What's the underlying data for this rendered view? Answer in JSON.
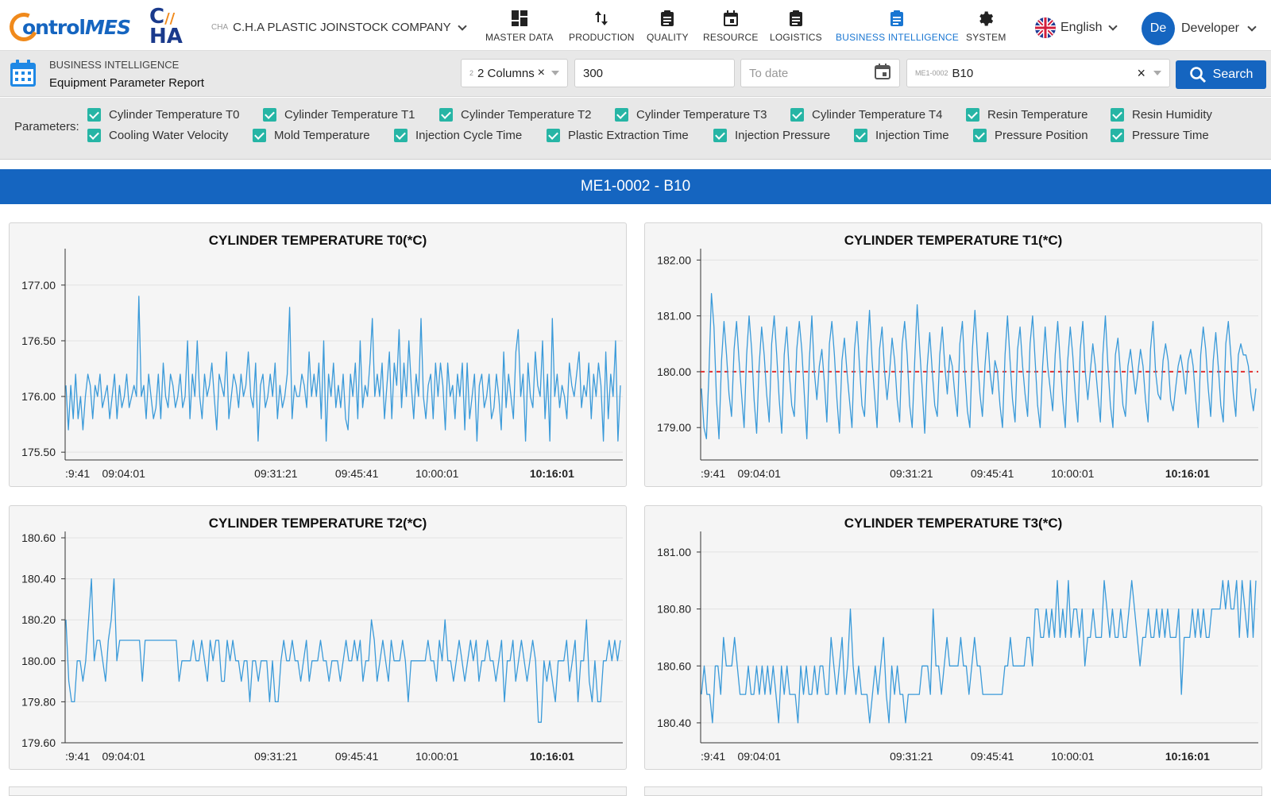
{
  "brand": {
    "logo_text_a": "ontrol",
    "logo_text_b": "MES",
    "partner_line1": "C",
    "partner_line2": "HA"
  },
  "company": {
    "code": "CHA",
    "name": "C.H.A PLASTIC JOINSTOCK COMPANY"
  },
  "nav": [
    {
      "label": "MASTER DATA",
      "icon": "dashboard-icon",
      "active": false
    },
    {
      "label": "PRODUCTION",
      "icon": "sort-arrows-icon",
      "active": false
    },
    {
      "label": "QUALITY",
      "icon": "clipboard-icon",
      "active": false
    },
    {
      "label": "RESOURCE",
      "icon": "calendar-icon",
      "active": false
    },
    {
      "label": "LOGISTICS",
      "icon": "clipboard-list-icon",
      "active": false
    },
    {
      "label": "BUSINESS INTELLIGENCE",
      "icon": "report-icon",
      "active": true
    },
    {
      "label": "SYSTEM",
      "icon": "gear-icon",
      "active": false
    }
  ],
  "language": {
    "label": "English",
    "flag": "uk-flag-icon"
  },
  "user": {
    "initials": "De",
    "name": "Developer"
  },
  "breadcrumb": {
    "section": "BUSINESS INTELLIGENCE",
    "page": "Equipment Parameter Report"
  },
  "filters": {
    "columns": {
      "code": "2",
      "value": "2 Columns"
    },
    "limit": {
      "value": "300"
    },
    "to_date": {
      "placeholder": "To date",
      "value": ""
    },
    "equipment": {
      "code": "ME1-0002",
      "value": "B10"
    },
    "search_label": "Search"
  },
  "parameters": {
    "label": "Parameters:",
    "row1": [
      "Cylinder Temperature T0",
      "Cylinder Temperature T1",
      "Cylinder Temperature T2",
      "Cylinder Temperature T3",
      "Cylinder Temperature T4",
      "Resin Temperature",
      "Resin Humidity"
    ],
    "row2": [
      "Cooling Water Velocity",
      "Mold Temperature",
      "Injection Cycle Time",
      "Plastic Extraction Time",
      "Injection Pressure",
      "Injection Time",
      "Pressure Position",
      "Pressure Time"
    ]
  },
  "banner": "ME1-0002 - B10",
  "colors": {
    "primary": "#1565c0",
    "line": "#3a9ad9",
    "limit": "#e03030",
    "check": "#26b5a5"
  },
  "chart_data": [
    {
      "type": "line",
      "title": "CYLINDER TEMPERATURE T0(*C)",
      "x_ticks": [
        ":9:41",
        "09:04:01",
        "09:31:21",
        "09:45:41",
        "10:00:01",
        "10:16:01"
      ],
      "y_ticks": [
        "177.00",
        "176.50",
        "176.00",
        "175.50"
      ],
      "ylim": [
        175.43,
        177.27
      ],
      "values": [
        176.1,
        175.7,
        176.1,
        175.8,
        176.2,
        175.8,
        176.0,
        175.7,
        176.0,
        176.2,
        176.1,
        175.8,
        176.1,
        176.0,
        176.2,
        175.9,
        176.0,
        176.1,
        175.8,
        176.0,
        176.2,
        175.8,
        176.1,
        175.9,
        176.0,
        176.2,
        175.9,
        176.0,
        176.1,
        176.0,
        176.9,
        176.0,
        176.1,
        175.8,
        176.2,
        176.0,
        175.8,
        175.9,
        176.2,
        175.8,
        176.3,
        176.0,
        175.9,
        176.2,
        176.1,
        175.9,
        176.0,
        176.2,
        175.9,
        176.0,
        176.5,
        175.8,
        176.2,
        176.0,
        176.5,
        176.0,
        175.8,
        176.2,
        176.0,
        176.1,
        176.3,
        176.0,
        175.7,
        176.2,
        176.1,
        176.0,
        176.4,
        175.8,
        176.0,
        176.2,
        176.1,
        175.9,
        176.2,
        176.0,
        176.1,
        176.4,
        176.0,
        175.9,
        176.3,
        175.6,
        176.1,
        176.2,
        175.9,
        176.0,
        176.2,
        176.0,
        176.3,
        175.8,
        176.1,
        175.9,
        176.0,
        176.2,
        176.8,
        175.8,
        176.1,
        176.0,
        176.0,
        176.2,
        176.1,
        175.9,
        176.4,
        176.0,
        176.2,
        176.0,
        176.3,
        175.8,
        176.5,
        175.6,
        176.2,
        176.0,
        176.3,
        175.9,
        176.1,
        175.9,
        176.2,
        175.8,
        175.7,
        176.2,
        176.0,
        176.3,
        175.8,
        176.5,
        175.9,
        176.1,
        176.0,
        176.3,
        176.7,
        176.0,
        176.2,
        176.0,
        176.3,
        175.8,
        176.1,
        176.4,
        175.8,
        176.3,
        176.1,
        176.6,
        175.9,
        176.3,
        176.0,
        176.5,
        176.1,
        175.8,
        176.2,
        176.0,
        176.7,
        176.0,
        175.8,
        176.1,
        176.2,
        175.8,
        176.3,
        176.0,
        176.3,
        176.1,
        175.7,
        176.3,
        176.0,
        176.1,
        175.8,
        176.2,
        176.0,
        176.3,
        175.7,
        176.3,
        175.8,
        176.0,
        176.2,
        175.6,
        176.1,
        176.2,
        175.9,
        176.0,
        176.2,
        175.8,
        175.9,
        176.2,
        176.0,
        175.7,
        176.4,
        175.9,
        176.2,
        176.0,
        175.8,
        176.4,
        176.6,
        176.0,
        176.2,
        175.6,
        176.3,
        176.0,
        175.9,
        176.4,
        176.1,
        176.0,
        176.5,
        175.8,
        176.2,
        175.6,
        176.7,
        176.0,
        176.2,
        175.9,
        176.1,
        176.0,
        175.8,
        176.3,
        176.1,
        176.0,
        176.2,
        176.4,
        175.9,
        176.1,
        176.0,
        176.3,
        175.8,
        176.2,
        176.0,
        176.3,
        176.1,
        175.6,
        176.4,
        175.8,
        176.2,
        176.0,
        176.5,
        175.6,
        176.1
      ]
    },
    {
      "type": "line",
      "title": "CYLINDER TEMPERATURE T1(*C)",
      "x_ticks": [
        ":9:41",
        "09:04:01",
        "09:31:21",
        "09:45:41",
        "10:00:01",
        "10:16:01"
      ],
      "y_ticks": [
        "182.00",
        "181.00",
        "180.00",
        "179.00"
      ],
      "ylim": [
        178.42,
        182.09
      ],
      "limit_line": 180.0,
      "values": [
        179.7,
        179.0,
        178.8,
        180.0,
        181.4,
        180.8,
        179.5,
        178.8,
        180.2,
        180.9,
        180.3,
        179.6,
        179.2,
        180.4,
        180.9,
        180.2,
        179.6,
        179.0,
        180.3,
        181.0,
        180.4,
        179.5,
        178.9,
        180.1,
        180.8,
        180.3,
        179.6,
        179.1,
        180.5,
        181.0,
        180.3,
        179.5,
        178.9,
        180.3,
        180.8,
        180.0,
        179.4,
        179.2,
        180.4,
        180.9,
        180.4,
        179.6,
        178.8,
        180.2,
        181.0,
        180.0,
        179.5,
        180.1,
        180.4,
        179.8,
        179.1,
        180.5,
        180.9,
        180.3,
        179.5,
        178.9,
        180.2,
        180.6,
        180.0,
        179.5,
        179.0,
        180.4,
        180.9,
        180.1,
        179.4,
        179.2,
        180.3,
        181.1,
        180.2,
        179.6,
        179.0,
        180.4,
        180.8,
        180.0,
        179.5,
        180.0,
        180.6,
        180.2,
        179.5,
        179.1,
        180.5,
        180.9,
        180.3,
        179.4,
        179.0,
        180.2,
        181.2,
        180.4,
        179.7,
        178.9,
        180.1,
        180.7,
        180.0,
        179.4,
        179.2,
        180.3,
        180.8,
        180.1,
        179.6,
        180.3,
        180.1,
        179.6,
        179.2,
        180.5,
        180.9,
        180.0,
        179.3,
        179.0,
        180.4,
        181.1,
        180.3,
        179.6,
        179.2,
        180.1,
        180.7,
        180.0,
        179.6,
        180.2,
        180.0,
        179.4,
        179.0,
        180.3,
        181.0,
        180.2,
        179.5,
        179.1,
        180.4,
        180.8,
        180.1,
        179.6,
        179.2,
        180.5,
        181.0,
        180.2,
        179.4,
        179.0,
        180.1,
        180.8,
        180.1,
        179.7,
        179.3,
        180.3,
        180.9,
        180.2,
        179.5,
        179.0,
        180.2,
        180.8,
        180.3,
        179.6,
        179.1,
        180.4,
        180.9,
        180.0,
        179.5,
        180.0,
        180.5,
        180.1,
        179.6,
        179.1,
        180.3,
        181.0,
        180.1,
        179.4,
        179.0,
        180.3,
        180.6,
        180.0,
        179.4,
        179.2,
        180.1,
        180.4,
        180.0,
        179.6,
        180.0,
        180.4,
        180.1,
        179.5,
        179.1,
        180.4,
        180.9,
        180.0,
        179.6,
        179.5,
        180.2,
        180.5,
        180.2,
        179.5,
        179.3,
        179.7,
        180.1,
        180.3,
        180.0,
        179.6,
        180.2,
        180.4,
        180.1,
        179.5,
        179.0,
        180.3,
        180.8,
        180.4,
        179.7,
        179.2,
        180.2,
        180.7,
        180.1,
        179.4,
        179.1,
        180.5,
        180.9,
        180.3,
        179.6,
        179.2,
        180.3,
        180.5,
        180.3,
        180.3,
        180.1,
        179.6,
        179.3,
        179.7
      ]
    },
    {
      "type": "line",
      "title": "CYLINDER TEMPERATURE T2(*C)",
      "x_ticks": [
        ":9:41",
        "09:04:01",
        "09:31:21",
        "09:45:41",
        "10:00:01",
        "10:16:01"
      ],
      "y_ticks": [
        "180.60",
        "180.40",
        "180.20",
        "180.00",
        "179.80",
        "179.60"
      ],
      "ylim": [
        179.6,
        180.6
      ],
      "values": [
        180.2,
        179.9,
        179.8,
        179.8,
        180.0,
        180.0,
        179.9,
        180.0,
        180.2,
        180.4,
        180.0,
        180.1,
        180.1,
        180.0,
        179.9,
        180.1,
        180.2,
        180.4,
        180.0,
        180.1,
        180.1,
        180.1,
        180.1,
        180.1,
        180.1,
        180.1,
        180.1,
        179.9,
        180.1,
        180.1,
        180.1,
        180.1,
        180.1,
        180.1,
        180.1,
        180.1,
        180.1,
        180.1,
        180.1,
        180.1,
        179.9,
        180.0,
        180.0,
        180.0,
        180.0,
        180.1,
        180.0,
        180.0,
        180.1,
        180.0,
        179.9,
        180.1,
        180.0,
        180.1,
        180.1,
        179.9,
        179.9,
        180.1,
        180.0,
        180.1,
        180.0,
        180.0,
        179.9,
        180.0,
        180.0,
        179.8,
        180.0,
        180.0,
        179.9,
        180.0,
        180.0,
        180.0,
        179.8,
        180.0,
        179.8,
        179.8,
        180.0,
        180.1,
        180.0,
        180.0,
        180.1,
        180.0,
        180.0,
        179.9,
        180.0,
        180.1,
        179.9,
        180.0,
        180.0,
        180.0,
        180.1,
        180.0,
        180.0,
        179.9,
        180.0,
        180.0,
        180.0,
        179.9,
        180.0,
        180.1,
        180.0,
        180.0,
        180.1,
        180.0,
        180.1,
        179.9,
        180.0,
        180.0,
        180.2,
        180.1,
        179.9,
        180.0,
        180.1,
        180.0,
        179.9,
        180.1,
        180.0,
        180.0,
        180.0,
        180.1,
        180.0,
        179.8,
        180.0,
        180.0,
        180.0,
        180.0,
        180.0,
        180.0,
        180.1,
        180.0,
        180.0,
        179.9,
        180.1,
        180.0,
        180.2,
        180.0,
        180.0,
        179.9,
        180.0,
        180.1,
        180.0,
        179.9,
        180.0,
        180.1,
        180.0,
        180.1,
        179.9,
        180.0,
        180.0,
        180.1,
        180.0,
        180.0,
        179.9,
        180.0,
        180.1,
        179.8,
        180.0,
        180.0,
        180.1,
        179.9,
        180.0,
        180.1,
        180.0,
        179.9,
        180.0,
        180.1,
        180.0,
        179.7,
        179.7,
        180.0,
        179.9,
        180.0,
        179.9,
        179.8,
        180.0,
        180.0,
        180.0,
        180.1,
        179.9,
        180.0,
        180.1,
        179.8,
        180.0,
        180.0,
        180.2,
        179.9,
        179.8,
        180.0,
        179.8,
        179.8,
        180.0,
        180.0,
        180.1,
        180.0,
        180.1,
        180.0,
        180.1
      ]
    },
    {
      "type": "line",
      "title": "CYLINDER TEMPERATURE T3(*C)",
      "x_ticks": [
        ":9:41",
        "09:04:01",
        "09:31:21",
        "09:45:41",
        "10:00:01",
        "10:16:01"
      ],
      "y_ticks": [
        "181.00",
        "180.80",
        "180.60",
        "180.40"
      ],
      "ylim": [
        180.33,
        181.05
      ],
      "values": [
        180.5,
        180.6,
        180.5,
        180.5,
        180.4,
        180.6,
        180.6,
        180.5,
        180.7,
        180.6,
        180.6,
        180.6,
        180.7,
        180.6,
        180.5,
        180.5,
        180.5,
        180.6,
        180.5,
        180.5,
        180.6,
        180.5,
        180.6,
        180.5,
        180.6,
        180.5,
        180.6,
        180.5,
        180.4,
        180.6,
        180.5,
        180.6,
        180.5,
        180.5,
        180.5,
        180.4,
        180.6,
        180.5,
        180.6,
        180.5,
        180.5,
        180.6,
        180.5,
        180.6,
        180.6,
        180.5,
        180.5,
        180.7,
        180.6,
        180.5,
        180.6,
        180.7,
        180.5,
        180.6,
        180.8,
        180.6,
        180.5,
        180.6,
        180.5,
        180.5,
        180.5,
        180.4,
        180.5,
        180.6,
        180.5,
        180.6,
        180.7,
        180.5,
        180.4,
        180.6,
        180.5,
        180.6,
        180.5,
        180.5,
        180.4,
        180.5,
        180.5,
        180.5,
        180.5,
        180.5,
        180.6,
        180.6,
        180.6,
        180.5,
        180.8,
        180.6,
        180.6,
        180.5,
        180.6,
        180.7,
        180.6,
        180.6,
        180.6,
        180.6,
        180.7,
        180.6,
        180.6,
        180.5,
        180.6,
        180.7,
        180.6,
        180.6,
        180.5,
        180.5,
        180.5,
        180.5,
        180.5,
        180.5,
        180.5,
        180.5,
        180.6,
        180.6,
        180.7,
        180.6,
        180.6,
        180.6,
        180.6,
        180.6,
        180.7,
        180.7,
        180.6,
        180.8,
        180.8,
        180.7,
        180.7,
        180.8,
        180.7,
        180.8,
        180.7,
        180.9,
        180.7,
        180.8,
        180.7,
        180.9,
        180.7,
        180.8,
        180.8,
        180.7,
        180.8,
        180.6,
        180.7,
        180.7,
        180.8,
        180.7,
        180.7,
        180.7,
        180.9,
        180.8,
        180.7,
        180.8,
        180.7,
        180.7,
        180.8,
        180.7,
        180.7,
        180.8,
        180.9,
        180.8,
        180.7,
        180.6,
        180.7,
        180.7,
        180.8,
        180.7,
        180.7,
        180.8,
        180.7,
        180.8,
        180.7,
        180.8,
        180.7,
        180.7,
        180.7,
        180.8,
        180.5,
        180.7,
        180.7,
        180.7,
        180.8,
        180.7,
        180.8,
        180.7,
        180.8,
        180.7,
        180.7,
        180.8,
        180.8,
        180.8,
        180.8,
        180.9,
        180.8,
        180.9,
        180.8,
        180.8,
        180.9,
        180.7,
        180.9,
        180.8,
        180.7,
        180.9,
        180.7,
        180.9
      ]
    }
  ]
}
